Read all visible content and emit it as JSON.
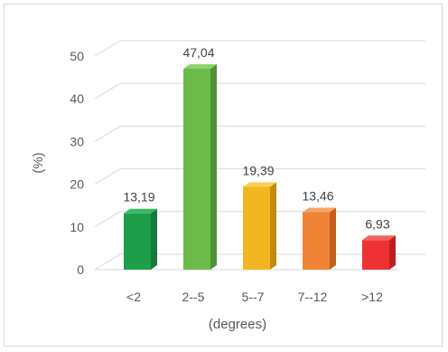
{
  "chart_data": {
    "type": "bar",
    "title": "",
    "xlabel": "(degrees)",
    "ylabel": "(%)",
    "categories": [
      "<2",
      "2--5",
      "5--7",
      "7--12",
      ">12"
    ],
    "values": [
      13.19,
      47.04,
      19.39,
      13.46,
      6.93
    ],
    "data_labels": [
      "13,19",
      "47,04",
      "19,39",
      "13,46",
      "6,93"
    ],
    "y_ticks": [
      "0",
      "10",
      "20",
      "30",
      "40",
      "50"
    ],
    "ylim": [
      0,
      50
    ],
    "grid": true,
    "legend": "none",
    "bar_colors": [
      "#1e9e4a",
      "#6cbb4a",
      "#f2b620",
      "#f08436",
      "#ee3233"
    ],
    "bar_side_colors": [
      "#16783a",
      "#4f9136",
      "#c28c10",
      "#c45f1c",
      "#bf1f20"
    ],
    "bar_top_colors": [
      "#3ab864",
      "#8fd16a",
      "#f8cf55",
      "#f5a466",
      "#f46060"
    ],
    "style_3d": true
  }
}
